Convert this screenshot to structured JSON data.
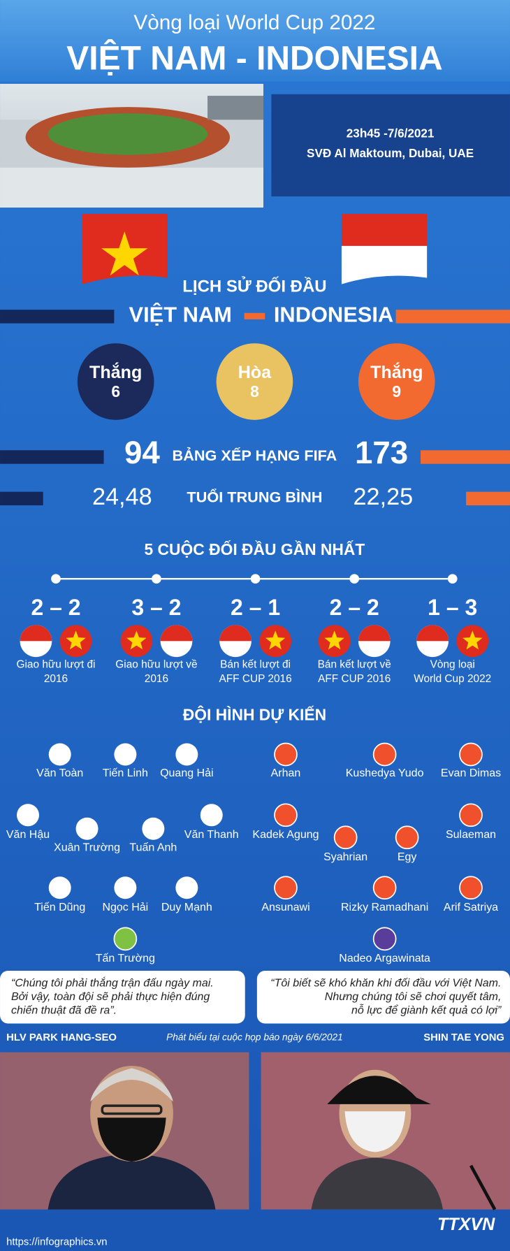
{
  "header": {
    "subtitle": "Vòng loại World Cup 2022",
    "title": "VIỆT NAM - INDONESIA"
  },
  "match": {
    "time": "23h45 -7/6/2021",
    "venue": "SVĐ Al Maktoum, Dubai, UAE"
  },
  "history": {
    "title": "LỊCH SỬ ĐỐI ĐẦU",
    "team_a": "VIỆT NAM",
    "team_b": "INDONESIA",
    "results": [
      {
        "label": "Thắng",
        "value": 6
      },
      {
        "label": "Hòa",
        "value": 8
      },
      {
        "label": "Thắng",
        "value": 9
      }
    ]
  },
  "stats": [
    {
      "label": "BẢNG XẾP HẠNG FIFA",
      "team_a": 94,
      "team_b": 173
    },
    {
      "label": "TUỔI TRUNG BÌNH",
      "team_a": "24,48",
      "team_b": "22,25"
    }
  ],
  "recent": {
    "title": "5 CUỘC ĐỐI ĐẦU GẦN NHẤT",
    "matches": [
      {
        "score": "2 – 2",
        "label": [
          "Giao hữu lượt đi",
          "2016"
        ]
      },
      {
        "score": "3 – 2",
        "label": [
          "Giao hữu lượt về",
          "2016"
        ]
      },
      {
        "score": "2 – 1",
        "label": [
          "Bán kết lượt đi",
          "AFF CUP 2016"
        ]
      },
      {
        "score": "2 – 2",
        "label": [
          "Bán kết lượt về",
          "AFF CUP 2016"
        ]
      },
      {
        "score": "1 – 3",
        "label": [
          "Vòng loại",
          "World Cup 2022"
        ]
      }
    ]
  },
  "lineup": {
    "title": "ĐỘI HÌNH DỰ KIẾN",
    "team_a": [
      "Văn Toàn",
      "Tiến Linh",
      "Quang Hải",
      "Văn Hậu",
      "Xuân Trường",
      "Tuấn Anh",
      "Văn Thanh",
      "Tiến Dũng",
      "Ngọc Hải",
      "Duy Mạnh",
      "Tấn Trường"
    ],
    "team_b": [
      "Arhan",
      "Kushedya Yudo",
      "Evan Dimas",
      "Kadek Agung",
      "Sulaeman",
      "Syahrian",
      "Egy",
      "Ansunawi",
      "Rizky Ramadhani",
      "Arif Satriya",
      "Nadeo Argawinata"
    ]
  },
  "quotes": [
    [
      "“Chúng tôi phải thắng trận đấu ngày mai.",
      "Bởi vậy, toàn đội sẽ phải thực hiện đúng",
      "chiến thuật đã đề ra”."
    ],
    [
      "“Tôi biết sẽ khó khăn khi đối đầu với Việt Nam.",
      "Nhưng chúng tôi sẽ chơi quyết tâm,",
      "nỗ lực để giành kết quả có lợi”"
    ]
  ],
  "coaches": {
    "team_a": "HLV PARK HANG-SEO",
    "note": "Phát biểu tại cuộc họp báo ngày 6/6/2021",
    "team_b": "SHIN TAE YONG"
  },
  "footer": {
    "url": "https://infographics.vn",
    "logo": "TTXVN"
  }
}
